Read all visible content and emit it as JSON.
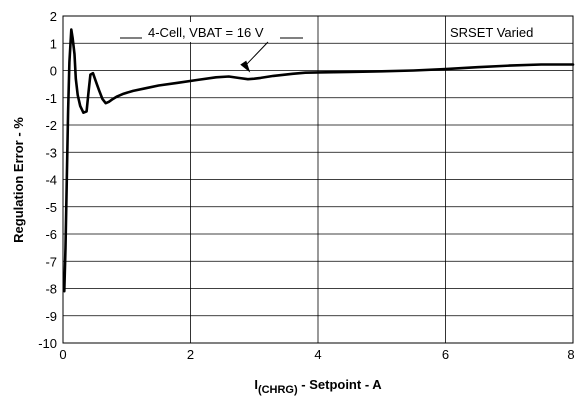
{
  "chart_data": {
    "type": "line",
    "title": "",
    "xlabel_main": "I",
    "xlabel_sub": "(CHRG)",
    "xlabel_rest": " - Setpoint - A",
    "ylabel": "Regulation Error - %",
    "xlim": [
      0,
      8
    ],
    "ylim": [
      -10,
      2
    ],
    "x_ticks": [
      0,
      2,
      4,
      6,
      8
    ],
    "y_ticks": [
      2,
      1,
      0,
      -1,
      -2,
      -3,
      -4,
      -5,
      -6,
      -7,
      -8,
      -9,
      -10
    ],
    "grid": true,
    "legend": "top-right",
    "legend_text": "SRSET Varied",
    "annotation_text": "4-Cell, VBAT = 16 V",
    "annotation_arrow_to": [
      3.0,
      -0.3
    ],
    "series": [
      {
        "x": [
          0.02,
          0.04,
          0.06,
          0.08,
          0.1,
          0.13,
          0.15,
          0.18,
          0.2,
          0.23,
          0.27,
          0.32,
          0.37,
          0.4,
          0.43,
          0.47,
          0.5,
          0.53,
          0.57,
          0.62,
          0.67,
          0.72,
          0.78,
          0.85,
          0.95,
          1.1,
          1.3,
          1.5,
          1.8,
          2.1,
          2.4,
          2.6,
          2.75,
          2.9,
          3.0,
          3.1,
          3.3,
          3.6,
          3.8,
          4.0,
          4.5,
          5.0,
          5.5,
          6.0,
          6.5,
          7.0,
          7.5,
          8.0
        ],
        "y": [
          -8.1,
          -6.5,
          -4.0,
          -1.5,
          0.3,
          1.5,
          1.2,
          0.6,
          -0.3,
          -0.9,
          -1.3,
          -1.55,
          -1.5,
          -0.8,
          -0.15,
          -0.1,
          -0.3,
          -0.5,
          -0.75,
          -1.05,
          -1.2,
          -1.15,
          -1.05,
          -0.95,
          -0.85,
          -0.75,
          -0.65,
          -0.55,
          -0.45,
          -0.35,
          -0.25,
          -0.22,
          -0.27,
          -0.32,
          -0.3,
          -0.27,
          -0.2,
          -0.12,
          -0.08,
          -0.07,
          -0.05,
          -0.03,
          0.0,
          0.05,
          0.12,
          0.18,
          0.22,
          0.22
        ]
      }
    ]
  }
}
